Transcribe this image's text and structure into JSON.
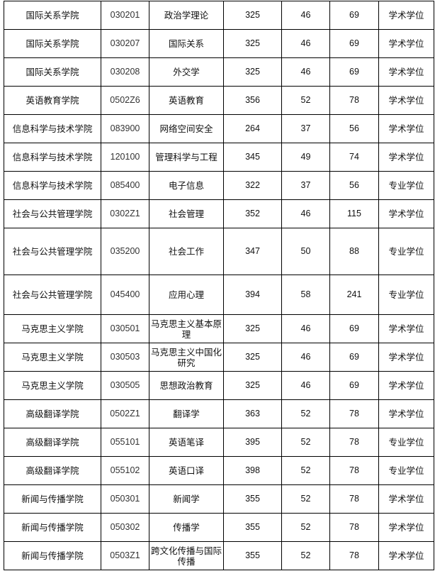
{
  "rows": [
    [
      "国际关系学院",
      "030201",
      "政治学理论",
      "325",
      "46",
      "69",
      "学术学位"
    ],
    [
      "国际关系学院",
      "030207",
      "国际关系",
      "325",
      "46",
      "69",
      "学术学位"
    ],
    [
      "国际关系学院",
      "030208",
      "外交学",
      "325",
      "46",
      "69",
      "学术学位"
    ],
    [
      "英语教育学院",
      "0502Z6",
      "英语教育",
      "356",
      "52",
      "78",
      "学术学位"
    ],
    [
      "信息科学与技术学院",
      "083900",
      "网络空间安全",
      "264",
      "37",
      "56",
      "学术学位"
    ],
    [
      "信息科学与技术学院",
      "120100",
      "管理科学与工程",
      "345",
      "49",
      "74",
      "学术学位"
    ],
    [
      "信息科学与技术学院",
      "085400",
      "电子信息",
      "322",
      "37",
      "56",
      "专业学位"
    ],
    [
      "社会与公共管理学院",
      "0302Z1",
      "社会管理",
      "352",
      "46",
      "115",
      "学术学位"
    ],
    [
      "社会与公共管理学院",
      "035200",
      "社会工作",
      "347",
      "50",
      "88",
      "专业学位"
    ],
    [
      "社会与公共管理学院",
      "045400",
      "应用心理",
      "394",
      "58",
      "241",
      "专业学位"
    ],
    [
      "马克思主义学院",
      "030501",
      "马克思主义基本原理",
      "325",
      "46",
      "69",
      "学术学位"
    ],
    [
      "马克思主义学院",
      "030503",
      "马克思主义中国化研究",
      "325",
      "46",
      "69",
      "学术学位"
    ],
    [
      "马克思主义学院",
      "030505",
      "思想政治教育",
      "325",
      "46",
      "69",
      "学术学位"
    ],
    [
      "高级翻译学院",
      "0502Z1",
      "翻译学",
      "363",
      "52",
      "78",
      "学术学位"
    ],
    [
      "高级翻译学院",
      "055101",
      "英语笔译",
      "395",
      "52",
      "78",
      "专业学位"
    ],
    [
      "高级翻译学院",
      "055102",
      "英语口译",
      "398",
      "52",
      "78",
      "专业学位"
    ],
    [
      "新闻与传播学院",
      "050301",
      "新闻学",
      "355",
      "52",
      "78",
      "学术学位"
    ],
    [
      "新闻与传播学院",
      "050302",
      "传播学",
      "355",
      "52",
      "78",
      "学术学位"
    ],
    [
      "新闻与传播学院",
      "0503Z1",
      "跨文化传播与国际传播",
      "355",
      "52",
      "78",
      "学术学位"
    ]
  ]
}
